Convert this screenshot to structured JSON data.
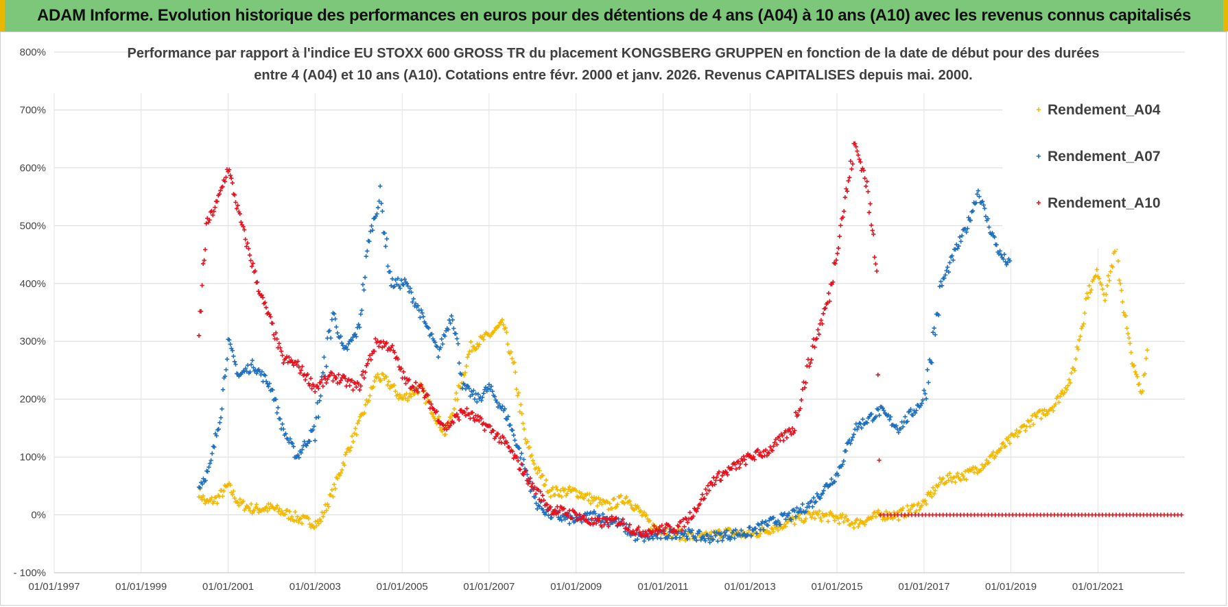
{
  "header": {
    "title": "ADAM Informe. Evolution historique des performances en euros pour des détentions de 4 ans (A04) à 10 ans (A10) avec les revenus connus capitalisés"
  },
  "chart_data": {
    "type": "scatter",
    "title_lines": [
      "Performance par rapport à l'indice EU STOXX 600 GROSS TR  du placement KONGSBERG GRUPPEN en fonction de la date de début pour des durées",
      "entre 4 (A04) et 10 ans (A10). Cotations entre févr. 2000 et janv. 2026. Revenus CAPITALISES depuis mai. 2000."
    ],
    "xlabel": "",
    "ylabel": "",
    "x_ticks": [
      "01/01/1997",
      "01/01/1999",
      "01/01/2001",
      "01/01/2003",
      "01/01/2005",
      "01/01/2007",
      "01/01/2009",
      "01/01/2011",
      "01/01/2013",
      "01/01/2015",
      "01/01/2017",
      "01/01/2019",
      "01/01/2021"
    ],
    "xlim": [
      "1997-01-01",
      "2022-12-31"
    ],
    "y_ticks": [
      "- 100%",
      "0%",
      "100%",
      "200%",
      "300%",
      "400%",
      "500%",
      "600%",
      "700%",
      "800%"
    ],
    "ylim": [
      -100,
      800
    ],
    "grid": true,
    "legend_position": "top-right",
    "series": [
      {
        "name": "Rendement_A04",
        "color": "#f5b800",
        "marker": "plus",
        "points": [
          [
            "2000-05-01",
            40
          ],
          [
            "2000-07-01",
            20
          ],
          [
            "2000-10-01",
            28
          ],
          [
            "2001-01-01",
            50
          ],
          [
            "2001-04-01",
            20
          ],
          [
            "2001-08-01",
            10
          ],
          [
            "2002-01-01",
            12
          ],
          [
            "2002-06-01",
            0
          ],
          [
            "2002-10-01",
            -10
          ],
          [
            "2003-02-01",
            -15
          ],
          [
            "2003-06-01",
            40
          ],
          [
            "2003-10-01",
            110
          ],
          [
            "2004-02-01",
            170
          ],
          [
            "2004-06-01",
            240
          ],
          [
            "2004-09-01",
            230
          ],
          [
            "2005-01-01",
            200
          ],
          [
            "2005-06-01",
            220
          ],
          [
            "2006-01-01",
            140
          ],
          [
            "2006-04-01",
            200
          ],
          [
            "2006-08-01",
            290
          ],
          [
            "2007-01-01",
            310
          ],
          [
            "2007-05-01",
            330
          ],
          [
            "2007-08-01",
            250
          ],
          [
            "2007-11-01",
            130
          ],
          [
            "2008-02-01",
            80
          ],
          [
            "2008-06-01",
            40
          ],
          [
            "2009-01-01",
            40
          ],
          [
            "2009-06-01",
            25
          ],
          [
            "2009-10-01",
            15
          ],
          [
            "2010-03-01",
            30
          ],
          [
            "2010-06-01",
            10
          ],
          [
            "2010-10-01",
            -20
          ],
          [
            "2011-01-01",
            -25
          ],
          [
            "2011-06-01",
            -35
          ],
          [
            "2011-12-01",
            -40
          ],
          [
            "2012-06-01",
            -30
          ],
          [
            "2013-01-01",
            -35
          ],
          [
            "2013-06-01",
            -25
          ],
          [
            "2014-01-01",
            -10
          ],
          [
            "2014-06-01",
            0
          ],
          [
            "2015-01-01",
            -5
          ],
          [
            "2015-06-01",
            -15
          ],
          [
            "2016-01-01",
            0
          ],
          [
            "2016-06-01",
            0
          ],
          [
            "2017-01-01",
            20
          ],
          [
            "2017-06-01",
            60
          ],
          [
            "2018-01-01",
            70
          ],
          [
            "2018-06-01",
            90
          ],
          [
            "2019-01-01",
            130
          ],
          [
            "2019-06-01",
            160
          ],
          [
            "2020-01-01",
            190
          ],
          [
            "2020-06-01",
            240
          ],
          [
            "2020-10-01",
            380
          ],
          [
            "2021-01-01",
            420
          ],
          [
            "2021-03-01",
            380
          ],
          [
            "2021-06-01",
            460
          ],
          [
            "2021-09-01",
            320
          ],
          [
            "2021-11-01",
            250
          ],
          [
            "2022-01-01",
            210
          ],
          [
            "2022-03-01",
            300
          ]
        ]
      },
      {
        "name": "Rendement_A07",
        "color": "#1f6fbf",
        "marker": "plus",
        "points": [
          [
            "2000-05-01",
            50
          ],
          [
            "2000-08-01",
            80
          ],
          [
            "2000-11-01",
            180
          ],
          [
            "2001-01-01",
            300
          ],
          [
            "2001-04-01",
            240
          ],
          [
            "2001-08-01",
            260
          ],
          [
            "2002-01-01",
            220
          ],
          [
            "2002-04-01",
            150
          ],
          [
            "2002-08-01",
            100
          ],
          [
            "2003-01-01",
            150
          ],
          [
            "2003-06-01",
            350
          ],
          [
            "2003-09-01",
            280
          ],
          [
            "2004-01-01",
            320
          ],
          [
            "2004-04-01",
            480
          ],
          [
            "2004-07-01",
            550
          ],
          [
            "2004-10-01",
            400
          ],
          [
            "2005-02-01",
            400
          ],
          [
            "2005-06-01",
            350
          ],
          [
            "2005-11-01",
            280
          ],
          [
            "2006-03-01",
            350
          ],
          [
            "2006-06-01",
            220
          ],
          [
            "2006-10-01",
            200
          ],
          [
            "2007-01-01",
            220
          ],
          [
            "2007-06-01",
            170
          ],
          [
            "2007-10-01",
            100
          ],
          [
            "2008-02-01",
            20
          ],
          [
            "2008-06-01",
            0
          ],
          [
            "2009-01-01",
            -10
          ],
          [
            "2009-06-01",
            0
          ],
          [
            "2010-01-01",
            -15
          ],
          [
            "2010-06-01",
            -40
          ],
          [
            "2011-01-01",
            -35
          ],
          [
            "2011-06-01",
            -30
          ],
          [
            "2012-01-01",
            -40
          ],
          [
            "2012-06-01",
            -35
          ],
          [
            "2013-01-01",
            -30
          ],
          [
            "2013-06-01",
            -15
          ],
          [
            "2014-01-01",
            0
          ],
          [
            "2014-06-01",
            20
          ],
          [
            "2015-01-01",
            70
          ],
          [
            "2015-06-01",
            150
          ],
          [
            "2016-01-01",
            180
          ],
          [
            "2016-06-01",
            150
          ],
          [
            "2017-01-01",
            200
          ],
          [
            "2017-06-01",
            400
          ],
          [
            "2017-10-01",
            460
          ],
          [
            "2018-01-01",
            500
          ],
          [
            "2018-04-01",
            560
          ],
          [
            "2018-07-01",
            500
          ],
          [
            "2018-10-01",
            450
          ],
          [
            "2019-01-01",
            430
          ]
        ]
      },
      {
        "name": "Rendement_A10",
        "color": "#e8101c",
        "marker": "plus",
        "points": [
          [
            "2000-05-01",
            310
          ],
          [
            "2000-07-01",
            500
          ],
          [
            "2000-10-01",
            540
          ],
          [
            "2001-01-01",
            600
          ],
          [
            "2001-04-01",
            520
          ],
          [
            "2001-07-01",
            450
          ],
          [
            "2001-10-01",
            380
          ],
          [
            "2002-01-01",
            330
          ],
          [
            "2002-04-01",
            270
          ],
          [
            "2002-08-01",
            260
          ],
          [
            "2003-01-01",
            220
          ],
          [
            "2003-06-01",
            240
          ],
          [
            "2004-01-01",
            220
          ],
          [
            "2004-06-01",
            300
          ],
          [
            "2004-10-01",
            290
          ],
          [
            "2005-02-01",
            230
          ],
          [
            "2005-06-01",
            220
          ],
          [
            "2006-01-01",
            150
          ],
          [
            "2006-06-01",
            180
          ],
          [
            "2007-01-01",
            150
          ],
          [
            "2007-06-01",
            120
          ],
          [
            "2008-01-01",
            50
          ],
          [
            "2008-06-01",
            10
          ],
          [
            "2009-01-01",
            0
          ],
          [
            "2009-06-01",
            -15
          ],
          [
            "2010-01-01",
            -10
          ],
          [
            "2010-06-01",
            -30
          ],
          [
            "2011-01-01",
            -25
          ],
          [
            "2011-06-01",
            -20
          ],
          [
            "2011-10-01",
            10
          ],
          [
            "2012-03-01",
            60
          ],
          [
            "2012-08-01",
            80
          ],
          [
            "2013-01-01",
            100
          ],
          [
            "2013-06-01",
            110
          ],
          [
            "2014-01-01",
            150
          ],
          [
            "2014-06-01",
            280
          ],
          [
            "2014-11-01",
            380
          ],
          [
            "2015-02-01",
            500
          ],
          [
            "2015-06-01",
            640
          ],
          [
            "2015-09-01",
            580
          ],
          [
            "2015-12-01",
            430
          ],
          [
            "2016-01-01",
            0
          ],
          [
            "2018-01-01",
            0
          ],
          [
            "2020-01-01",
            0
          ],
          [
            "2022-12-31",
            0
          ]
        ]
      }
    ]
  }
}
